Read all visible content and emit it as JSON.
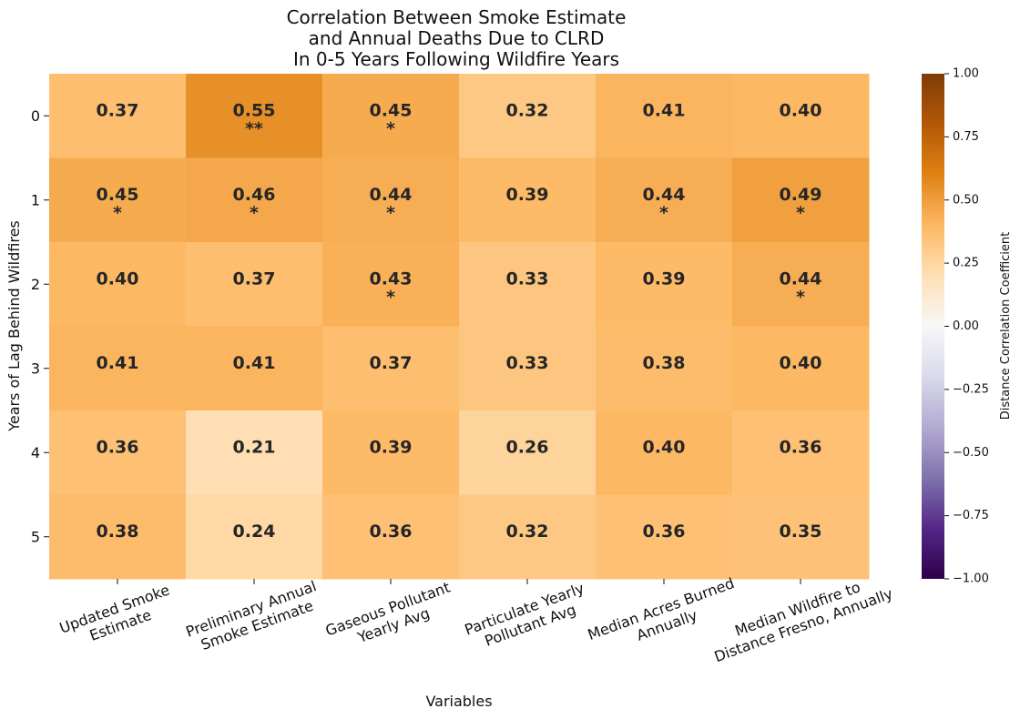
{
  "chart_data": {
    "type": "heatmap",
    "title_lines": [
      "Correlation Between Smoke Estimate",
      "and Annual Deaths Due to CLRD",
      "In 0-5 Years Following Wildfire Years"
    ],
    "xlabel": "Variables",
    "ylabel": "Years of Lag Behind Wildfires",
    "x_categories": [
      [
        "Updated Smoke",
        "Estimate"
      ],
      [
        "Preliminary Annual",
        "Smoke Estimate"
      ],
      [
        "Gaseous Pollutant",
        "Yearly Avg"
      ],
      [
        "Particulate Yearly",
        "Pollutant Avg"
      ],
      [
        "Median Acres Burned",
        "Annually"
      ],
      [
        "Median Wildfire to",
        "Distance Fresno, Annually"
      ]
    ],
    "y_categories": [
      "0",
      "1",
      "2",
      "3",
      "4",
      "5"
    ],
    "values": [
      [
        0.37,
        0.55,
        0.45,
        0.32,
        0.41,
        0.4
      ],
      [
        0.45,
        0.46,
        0.44,
        0.39,
        0.44,
        0.49
      ],
      [
        0.4,
        0.37,
        0.43,
        0.33,
        0.39,
        0.44
      ],
      [
        0.41,
        0.41,
        0.37,
        0.33,
        0.38,
        0.4
      ],
      [
        0.36,
        0.21,
        0.39,
        0.26,
        0.4,
        0.36
      ],
      [
        0.38,
        0.24,
        0.36,
        0.32,
        0.36,
        0.35
      ]
    ],
    "significance": [
      [
        "",
        "**",
        "*",
        "",
        "",
        ""
      ],
      [
        "*",
        "*",
        "*",
        "",
        "*",
        "*"
      ],
      [
        "",
        "",
        "*",
        "",
        "",
        "*"
      ],
      [
        "",
        "",
        "",
        "",
        "",
        ""
      ],
      [
        "",
        "",
        "",
        "",
        "",
        ""
      ],
      [
        "",
        "",
        "",
        "",
        "",
        ""
      ]
    ],
    "colorbar": {
      "label": "Distance Correlation Coefficient",
      "range": [
        -1.0,
        1.0
      ],
      "ticks": [
        1.0,
        0.75,
        0.5,
        0.25,
        0.0,
        -0.25,
        -0.5,
        -0.75,
        -1.0
      ],
      "tick_labels": [
        "1.00",
        "0.75",
        "0.50",
        "0.25",
        "0.00",
        "−0.25",
        "−0.50",
        "−0.75",
        "−1.00"
      ],
      "colormap": "PuOr",
      "color_stops": [
        "#2d004b",
        "#542788",
        "#8073ac",
        "#b2abd2",
        "#d8daeb",
        "#f7f7f7",
        "#fee0b6",
        "#fdb863",
        "#e08214",
        "#b35806",
        "#7f3b08"
      ]
    }
  }
}
